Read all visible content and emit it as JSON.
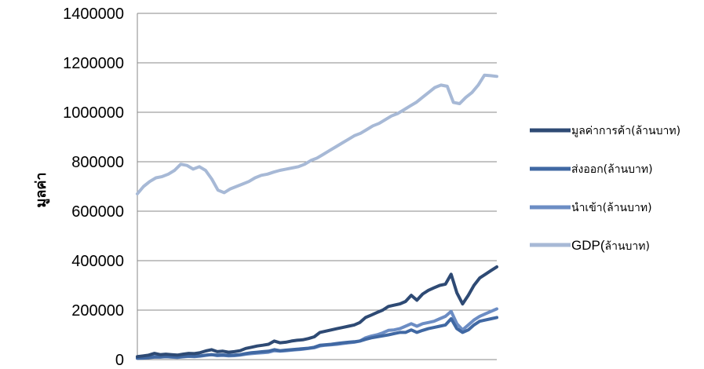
{
  "chart_data": {
    "type": "line",
    "title": "",
    "xlabel": "",
    "ylabel": "มูลค่า",
    "ylim": [
      0,
      1400000
    ],
    "yticks": [
      0,
      200000,
      400000,
      600000,
      800000,
      1000000,
      1200000,
      1400000
    ],
    "ytick_labels": [
      "0",
      "200000",
      "400000",
      "600000",
      "800000",
      "1000000",
      "1200000",
      "1400000"
    ],
    "grid": true,
    "legend_position": "right",
    "series": [
      {
        "name": "มูลค่าการค้า(ล้านบาท)",
        "color": "#2e4a74",
        "values": [
          12000,
          15000,
          18000,
          25000,
          20000,
          22000,
          20000,
          18000,
          22000,
          25000,
          24000,
          28000,
          35000,
          40000,
          32000,
          34000,
          30000,
          32000,
          36000,
          45000,
          50000,
          55000,
          58000,
          62000,
          75000,
          68000,
          70000,
          75000,
          78000,
          80000,
          85000,
          92000,
          110000,
          115000,
          120000,
          125000,
          130000,
          135000,
          140000,
          150000,
          170000,
          180000,
          190000,
          200000,
          215000,
          220000,
          225000,
          235000,
          260000,
          240000,
          265000,
          280000,
          290000,
          300000,
          305000,
          345000,
          270000,
          225000,
          260000,
          300000,
          330000,
          345000,
          360000,
          375000
        ]
      },
      {
        "name": "ส่งออก(ล้านบาท)",
        "color": "#4068a3",
        "values": [
          5000,
          6000,
          8000,
          10000,
          10000,
          12000,
          11000,
          10000,
          12000,
          14000,
          13000,
          15000,
          18000,
          20000,
          18000,
          19000,
          17000,
          18000,
          20000,
          24000,
          28000,
          30000,
          32000,
          34000,
          40000,
          36000,
          38000,
          40000,
          42000,
          44000,
          46000,
          50000,
          58000,
          60000,
          62000,
          65000,
          68000,
          70000,
          72000,
          75000,
          82000,
          88000,
          92000,
          96000,
          100000,
          105000,
          110000,
          110000,
          120000,
          110000,
          118000,
          125000,
          130000,
          135000,
          140000,
          165000,
          125000,
          110000,
          120000,
          140000,
          155000,
          160000,
          165000,
          170000
        ]
      },
      {
        "name": "นำเข้า(ล้านบาท)",
        "color": "#6c8dc4",
        "values": [
          6000,
          7000,
          9000,
          12000,
          11000,
          12000,
          10000,
          9000,
          11000,
          13000,
          12000,
          14000,
          17000,
          20000,
          16000,
          17000,
          15000,
          16000,
          18000,
          22000,
          24000,
          26000,
          28000,
          30000,
          36000,
          34000,
          36000,
          38000,
          40000,
          42000,
          45000,
          48000,
          55000,
          58000,
          60000,
          62000,
          65000,
          68000,
          70000,
          75000,
          88000,
          95000,
          100000,
          108000,
          118000,
          120000,
          125000,
          135000,
          145000,
          135000,
          145000,
          150000,
          155000,
          165000,
          175000,
          195000,
          145000,
          120000,
          140000,
          160000,
          175000,
          185000,
          195000,
          205000
        ]
      },
      {
        "name": "GDP(ล้านบาท)",
        "color": "#a7b9d6",
        "values": [
          670000,
          700000,
          720000,
          735000,
          740000,
          750000,
          765000,
          790000,
          785000,
          770000,
          780000,
          765000,
          730000,
          685000,
          675000,
          690000,
          700000,
          710000,
          720000,
          735000,
          745000,
          750000,
          758000,
          765000,
          770000,
          775000,
          780000,
          790000,
          805000,
          815000,
          830000,
          845000,
          860000,
          875000,
          890000,
          905000,
          915000,
          930000,
          945000,
          955000,
          970000,
          985000,
          995000,
          1010000,
          1025000,
          1040000,
          1060000,
          1080000,
          1100000,
          1110000,
          1105000,
          1040000,
          1035000,
          1060000,
          1080000,
          1110000,
          1150000,
          1148000,
          1145000
        ]
      }
    ],
    "legend_labels": {
      "s0": "มูลค่าการค้า(ล้านบาท)",
      "s1": "ส่งออก(ล้านบาท)",
      "s2": "นำเข้า(ล้านบาท)",
      "s3_prefix": "GDP(",
      "s3_suffix": "ล้านบาท)"
    }
  }
}
